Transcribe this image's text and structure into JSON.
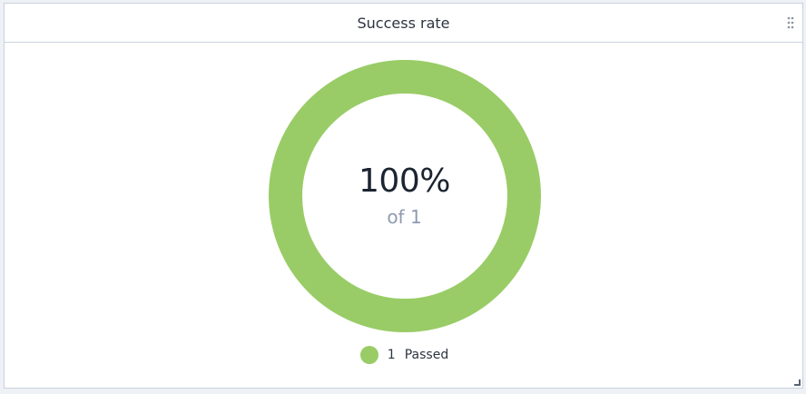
{
  "widget": {
    "title": "Success rate",
    "center_value": "100%",
    "center_sub": "of 1"
  },
  "colors": {
    "passed": "#99cc66",
    "title_text": "#2c3440",
    "sub_text": "#8e9ab0"
  },
  "icons": {
    "drag": "drag-handle-dots-icon",
    "resize": "resize-corner-icon"
  },
  "chart_data": {
    "type": "pie",
    "title": "Success rate",
    "donut": true,
    "categories": [
      "Passed"
    ],
    "values": [
      1
    ],
    "series": [
      {
        "name": "Passed",
        "values": [
          1
        ],
        "color": "#99cc66"
      }
    ],
    "legend": "bottom",
    "legend_items": [
      {
        "count": "1",
        "label": "Passed"
      }
    ]
  }
}
